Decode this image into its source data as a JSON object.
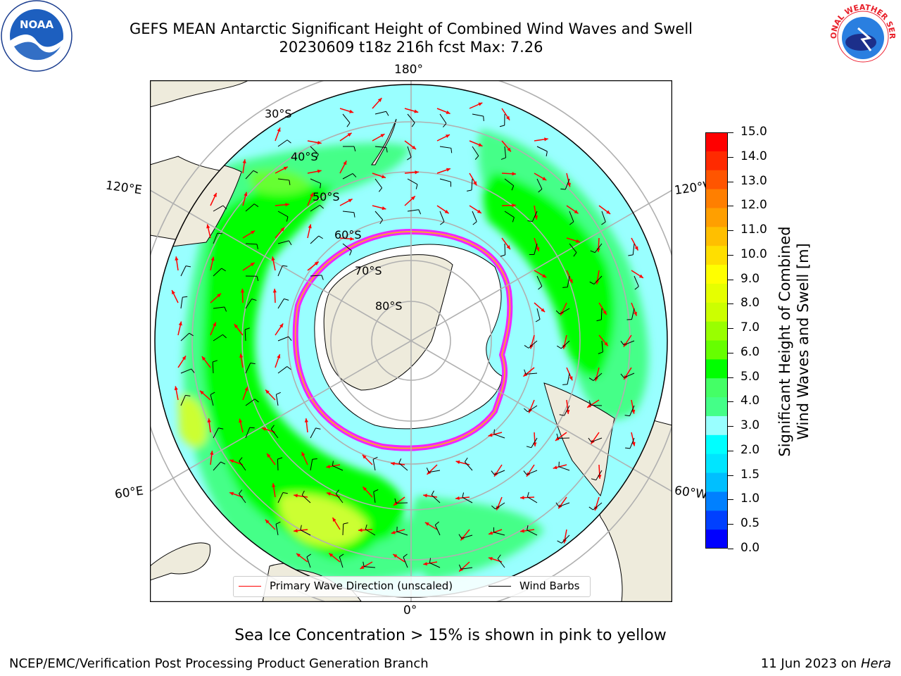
{
  "title": {
    "line1": "GEFS MEAN Antarctic Significant Height of Combined Wind Waves and Swell",
    "line2": "20230609 t18z 216h fcst   Max: 7.26"
  },
  "map": {
    "projection": "south-polar-stereographic",
    "longitude_labels": {
      "top": "180°",
      "bottom": "0°",
      "upper_left": "120°E",
      "lower_left": "60°E",
      "upper_right": "120°W",
      "lower_right": "60°W"
    },
    "latitude_labels": [
      "30°S",
      "40°S",
      "50°S",
      "60°S",
      "70°S",
      "80°S"
    ],
    "colors": {
      "land": "#eeebdc",
      "coast": "#000000",
      "grid": "#b0b0b0",
      "ice_edge": "#ff00ff",
      "wave_arrow": "#ff0000",
      "wind_barb": "#000000"
    }
  },
  "legend": {
    "primary_wave": "Primary Wave Direction (unscaled)",
    "wind_barbs": "Wind Barbs"
  },
  "colorbar": {
    "label_line1": "Significant Height of Combined",
    "label_line2": "Wind Waves and Swell [m]",
    "ticks": [
      "15.0",
      "14.0",
      "13.0",
      "12.0",
      "11.0",
      "10.0",
      "9.0",
      "8.0",
      "7.0",
      "6.0",
      "5.0",
      "4.0",
      "3.0",
      "2.0",
      "1.5",
      "1.0",
      "0.5",
      "0.0"
    ],
    "colors_top_to_bottom": [
      "#ff0000",
      "#ff2a00",
      "#ff5500",
      "#ff7f00",
      "#ff9f00",
      "#ffbf00",
      "#ffdf00",
      "#ffff00",
      "#e6ff00",
      "#ccff00",
      "#99ff00",
      "#66ff00",
      "#00ff00",
      "#44ff66",
      "#44ff88",
      "#99ffff",
      "#00ffff",
      "#00e5ff",
      "#00bfff",
      "#0080ff",
      "#0040ff",
      "#0000ff"
    ]
  },
  "sea_ice_note": "Sea Ice Concentration > 15% is shown in pink to yellow",
  "footer": {
    "left": "NCEP/EMC/Verification Post Processing Product Generation Branch",
    "right_date": "11 Jun 2023 on",
    "right_host": "Hera"
  },
  "logos": {
    "left": "NOAA",
    "right": "NATIONAL WEATHER SERVICE"
  }
}
